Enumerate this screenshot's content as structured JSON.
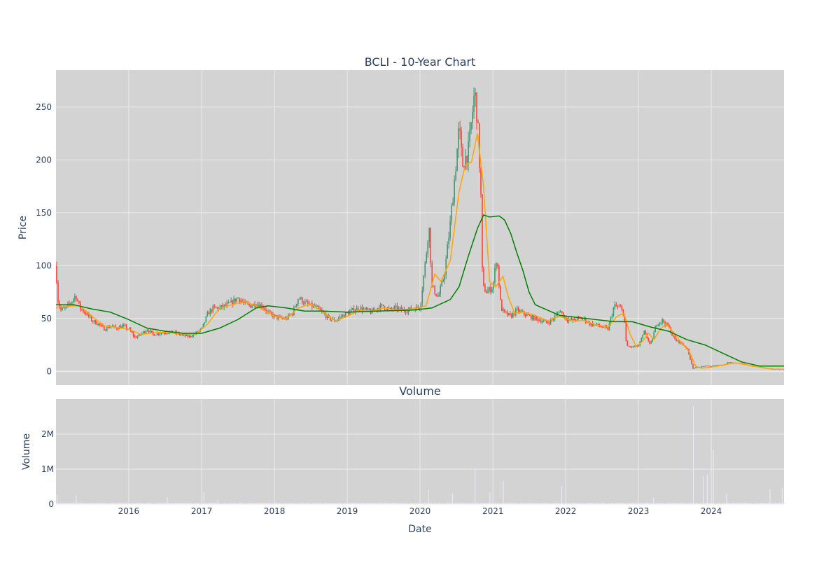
{
  "chart_data": [
    {
      "type": "candlestick",
      "title": "BCLI - 10-Year Chart",
      "xlabel": "",
      "ylabel": "Price",
      "ylim": [
        -13,
        285
      ],
      "yticks": [
        0,
        50,
        100,
        150,
        200,
        250
      ],
      "xlim": [
        "2015-01-01",
        "2024-12-31"
      ],
      "grid": true,
      "colors": {
        "up": "#3d9970",
        "down": "#ff4136",
        "ma_short": "#ffa500",
        "ma_long": "#008000",
        "plot_bg": "#d3d3d3"
      },
      "price_path": [
        [
          "2015-01-01",
          100
        ],
        [
          "2015-01-10",
          68
        ],
        [
          "2015-01-25",
          58
        ],
        [
          "2015-02-20",
          60
        ],
        [
          "2015-03-20",
          66
        ],
        [
          "2015-04-10",
          72
        ],
        [
          "2015-05-01",
          60
        ],
        [
          "2015-06-01",
          55
        ],
        [
          "2015-07-01",
          48
        ],
        [
          "2015-08-01",
          45
        ],
        [
          "2015-09-01",
          40
        ],
        [
          "2015-10-01",
          43
        ],
        [
          "2015-11-01",
          41
        ],
        [
          "2015-12-01",
          43
        ],
        [
          "2016-01-01",
          40
        ],
        [
          "2016-02-01",
          32
        ],
        [
          "2016-03-01",
          35
        ],
        [
          "2016-04-01",
          40
        ],
        [
          "2016-05-01",
          35
        ],
        [
          "2016-06-01",
          36
        ],
        [
          "2016-07-01",
          37
        ],
        [
          "2016-08-01",
          37
        ],
        [
          "2016-09-01",
          36
        ],
        [
          "2016-10-01",
          34
        ],
        [
          "2016-11-01",
          33
        ],
        [
          "2016-12-01",
          36
        ],
        [
          "2017-01-01",
          40
        ],
        [
          "2017-02-01",
          55
        ],
        [
          "2017-03-01",
          60
        ],
        [
          "2017-04-01",
          60
        ],
        [
          "2017-05-01",
          62
        ],
        [
          "2017-06-01",
          65
        ],
        [
          "2017-07-01",
          70
        ],
        [
          "2017-08-01",
          64
        ],
        [
          "2017-09-01",
          62
        ],
        [
          "2017-10-01",
          64
        ],
        [
          "2017-11-01",
          62
        ],
        [
          "2017-12-01",
          55
        ],
        [
          "2018-01-01",
          52
        ],
        [
          "2018-02-01",
          50
        ],
        [
          "2018-03-01",
          50
        ],
        [
          "2018-04-01",
          55
        ],
        [
          "2018-05-01",
          70
        ],
        [
          "2018-06-01",
          65
        ],
        [
          "2018-07-01",
          62
        ],
        [
          "2018-08-01",
          60
        ],
        [
          "2018-09-01",
          55
        ],
        [
          "2018-10-01",
          50
        ],
        [
          "2018-11-01",
          48
        ],
        [
          "2018-12-01",
          52
        ],
        [
          "2019-01-01",
          55
        ],
        [
          "2019-02-01",
          58
        ],
        [
          "2019-03-01",
          60
        ],
        [
          "2019-04-01",
          58
        ],
        [
          "2019-05-01",
          56
        ],
        [
          "2019-06-01",
          60
        ],
        [
          "2019-07-01",
          62
        ],
        [
          "2019-08-01",
          58
        ],
        [
          "2019-09-01",
          60
        ],
        [
          "2019-10-01",
          58
        ],
        [
          "2019-11-01",
          58
        ],
        [
          "2019-12-01",
          60
        ],
        [
          "2020-01-01",
          60
        ],
        [
          "2020-02-01",
          110
        ],
        [
          "2020-02-15",
          140
        ],
        [
          "2020-03-01",
          80
        ],
        [
          "2020-04-01",
          70
        ],
        [
          "2020-05-01",
          90
        ],
        [
          "2020-06-01",
          140
        ],
        [
          "2020-07-01",
          200
        ],
        [
          "2020-07-15",
          230
        ],
        [
          "2020-08-01",
          195
        ],
        [
          "2020-09-01",
          210
        ],
        [
          "2020-10-01",
          265
        ],
        [
          "2020-10-15",
          240
        ],
        [
          "2020-11-01",
          170
        ],
        [
          "2020-11-10",
          80
        ],
        [
          "2020-12-01",
          75
        ],
        [
          "2021-01-01",
          80
        ],
        [
          "2021-01-20",
          110
        ],
        [
          "2021-02-10",
          60
        ],
        [
          "2021-03-01",
          55
        ],
        [
          "2021-04-01",
          52
        ],
        [
          "2021-05-01",
          58
        ],
        [
          "2021-06-01",
          55
        ],
        [
          "2021-07-01",
          52
        ],
        [
          "2021-08-01",
          50
        ],
        [
          "2021-09-01",
          48
        ],
        [
          "2021-10-01",
          46
        ],
        [
          "2021-11-01",
          50
        ],
        [
          "2021-12-01",
          58
        ],
        [
          "2022-01-01",
          50
        ],
        [
          "2022-02-01",
          48
        ],
        [
          "2022-03-01",
          50
        ],
        [
          "2022-04-01",
          50
        ],
        [
          "2022-05-01",
          45
        ],
        [
          "2022-06-01",
          44
        ],
        [
          "2022-07-01",
          42
        ],
        [
          "2022-08-01",
          40
        ],
        [
          "2022-09-01",
          62
        ],
        [
          "2022-10-01",
          60
        ],
        [
          "2022-10-20",
          55
        ],
        [
          "2022-11-01",
          24
        ],
        [
          "2022-12-01",
          23
        ],
        [
          "2023-01-01",
          24
        ],
        [
          "2023-02-01",
          38
        ],
        [
          "2023-03-01",
          24
        ],
        [
          "2023-04-01",
          45
        ],
        [
          "2023-05-01",
          48
        ],
        [
          "2023-06-01",
          42
        ],
        [
          "2023-07-01",
          30
        ],
        [
          "2023-08-01",
          27
        ],
        [
          "2023-09-01",
          22
        ],
        [
          "2023-10-01",
          3
        ],
        [
          "2023-11-01",
          4
        ],
        [
          "2023-12-01",
          5
        ],
        [
          "2024-01-01",
          5
        ],
        [
          "2024-02-01",
          6
        ],
        [
          "2024-03-01",
          6
        ],
        [
          "2024-04-01",
          9
        ],
        [
          "2024-05-01",
          8
        ],
        [
          "2024-06-01",
          7
        ],
        [
          "2024-07-01",
          6
        ],
        [
          "2024-08-01",
          5
        ],
        [
          "2024-09-01",
          4
        ],
        [
          "2024-10-01",
          3
        ],
        [
          "2024-11-01",
          2
        ],
        [
          "2024-12-31",
          2
        ]
      ],
      "series": [
        {
          "type": "line",
          "values": [
            [
              "2015-01-01",
              60
            ],
            [
              "2015-03-01",
              62
            ],
            [
              "2015-05-01",
              62
            ],
            [
              "2015-07-01",
              52
            ],
            [
              "2015-09-01",
              43
            ],
            [
              "2016-01-01",
              40
            ],
            [
              "2016-03-01",
              35
            ],
            [
              "2016-06-01",
              37
            ],
            [
              "2016-09-01",
              36
            ],
            [
              "2016-12-01",
              35
            ],
            [
              "2017-02-01",
              45
            ],
            [
              "2017-04-01",
              60
            ],
            [
              "2017-06-01",
              63
            ],
            [
              "2017-08-01",
              66
            ],
            [
              "2017-10-01",
              62
            ],
            [
              "2018-01-01",
              52
            ],
            [
              "2018-03-01",
              50
            ],
            [
              "2018-05-01",
              60
            ],
            [
              "2018-07-01",
              64
            ],
            [
              "2018-09-01",
              56
            ],
            [
              "2018-11-01",
              48
            ],
            [
              "2019-01-01",
              52
            ],
            [
              "2019-03-01",
              58
            ],
            [
              "2019-05-01",
              57
            ],
            [
              "2019-07-01",
              60
            ],
            [
              "2019-09-01",
              58
            ],
            [
              "2019-12-01",
              59
            ],
            [
              "2020-02-01",
              62
            ],
            [
              "2020-03-15",
              92
            ],
            [
              "2020-04-15",
              85
            ],
            [
              "2020-06-01",
              105
            ],
            [
              "2020-07-15",
              170
            ],
            [
              "2020-08-15",
              195
            ],
            [
              "2020-09-15",
              198
            ],
            [
              "2020-10-15",
              225
            ],
            [
              "2020-11-15",
              175
            ],
            [
              "2020-12-15",
              85
            ],
            [
              "2021-01-15",
              80
            ],
            [
              "2021-02-20",
              90
            ],
            [
              "2021-03-20",
              70
            ],
            [
              "2021-04-20",
              55
            ],
            [
              "2021-06-01",
              56
            ],
            [
              "2021-08-01",
              53
            ],
            [
              "2021-10-01",
              48
            ],
            [
              "2021-12-01",
              52
            ],
            [
              "2022-02-01",
              48
            ],
            [
              "2022-04-01",
              48
            ],
            [
              "2022-06-01",
              44
            ],
            [
              "2022-08-01",
              42
            ],
            [
              "2022-09-15",
              52
            ],
            [
              "2022-10-20",
              55
            ],
            [
              "2022-11-20",
              35
            ],
            [
              "2022-12-20",
              24
            ],
            [
              "2023-01-20",
              28
            ],
            [
              "2023-02-20",
              36
            ],
            [
              "2023-03-20",
              30
            ],
            [
              "2023-04-20",
              40
            ],
            [
              "2023-05-20",
              45
            ],
            [
              "2023-06-20",
              38
            ],
            [
              "2023-08-01",
              28
            ],
            [
              "2023-09-15",
              18
            ],
            [
              "2023-10-15",
              5
            ],
            [
              "2023-11-15",
              3
            ],
            [
              "2024-01-01",
              4
            ],
            [
              "2024-03-01",
              6
            ],
            [
              "2024-05-01",
              8
            ],
            [
              "2024-07-01",
              6
            ],
            [
              "2024-09-01",
              4
            ],
            [
              "2024-11-01",
              2
            ],
            [
              "2024-12-31",
              2
            ]
          ]
        },
        {
          "type": "line",
          "values": [
            [
              "2015-01-01",
              63
            ],
            [
              "2015-04-01",
              63
            ],
            [
              "2015-07-01",
              59
            ],
            [
              "2015-10-01",
              56
            ],
            [
              "2016-01-01",
              49
            ],
            [
              "2016-04-01",
              41
            ],
            [
              "2016-07-01",
              38
            ],
            [
              "2016-10-01",
              36
            ],
            [
              "2017-01-01",
              36
            ],
            [
              "2017-04-01",
              41
            ],
            [
              "2017-07-01",
              49
            ],
            [
              "2017-10-01",
              60
            ],
            [
              "2017-12-01",
              62
            ],
            [
              "2018-03-01",
              60
            ],
            [
              "2018-06-01",
              57
            ],
            [
              "2018-09-01",
              57
            ],
            [
              "2019-01-01",
              56
            ],
            [
              "2019-06-01",
              57
            ],
            [
              "2019-12-01",
              58
            ],
            [
              "2020-03-01",
              60
            ],
            [
              "2020-06-01",
              68
            ],
            [
              "2020-07-15",
              80
            ],
            [
              "2020-09-01",
              110
            ],
            [
              "2020-10-15",
              135
            ],
            [
              "2020-11-15",
              148
            ],
            [
              "2020-12-15",
              146
            ],
            [
              "2021-02-01",
              147
            ],
            [
              "2021-03-01",
              143
            ],
            [
              "2021-04-01",
              130
            ],
            [
              "2021-05-01",
              112
            ],
            [
              "2021-06-01",
              95
            ],
            [
              "2021-07-01",
              75
            ],
            [
              "2021-08-01",
              63
            ],
            [
              "2021-10-01",
              58
            ],
            [
              "2021-12-01",
              53
            ],
            [
              "2022-03-01",
              51
            ],
            [
              "2022-06-01",
              49
            ],
            [
              "2022-09-01",
              47
            ],
            [
              "2022-12-01",
              47
            ],
            [
              "2023-03-01",
              42
            ],
            [
              "2023-06-01",
              38
            ],
            [
              "2023-09-01",
              30
            ],
            [
              "2023-12-01",
              25
            ],
            [
              "2024-03-01",
              17
            ],
            [
              "2024-06-01",
              9
            ],
            [
              "2024-09-01",
              5
            ],
            [
              "2024-12-31",
              5
            ]
          ]
        }
      ]
    },
    {
      "type": "bar",
      "title": "Volume",
      "xlabel": "Date",
      "ylabel": "Volume",
      "ylim": [
        0,
        3000000
      ],
      "yticks": [
        0,
        1000000,
        2000000
      ],
      "ytick_labels": [
        "0",
        "1M",
        "2M"
      ],
      "xtick_labels": [
        "2016",
        "2017",
        "2018",
        "2019",
        "2020",
        "2021",
        "2022",
        "2023",
        "2024"
      ],
      "xtick_dates": [
        "2016-01-01",
        "2017-01-01",
        "2018-01-01",
        "2019-01-01",
        "2020-01-01",
        "2021-01-01",
        "2022-01-01",
        "2023-01-01",
        "2024-01-01"
      ],
      "color": "#e8e8f6",
      "spikes": [
        [
          "2015-01-05",
          280000
        ],
        [
          "2015-04-10",
          250000
        ],
        [
          "2016-07-10",
          200000
        ],
        [
          "2017-01-10",
          350000
        ],
        [
          "2017-03-20",
          120000
        ],
        [
          "2020-02-10",
          420000
        ],
        [
          "2020-06-10",
          300000
        ],
        [
          "2020-10-01",
          1050000
        ],
        [
          "2020-12-15",
          330000
        ],
        [
          "2021-02-20",
          650000
        ],
        [
          "2021-12-10",
          520000
        ],
        [
          "2023-03-15",
          180000
        ],
        [
          "2023-10-01",
          2800000
        ],
        [
          "2023-11-20",
          800000
        ],
        [
          "2023-12-10",
          850000
        ],
        [
          "2024-01-10",
          1550000
        ],
        [
          "2024-03-15",
          300000
        ],
        [
          "2024-10-20",
          420000
        ],
        [
          "2024-12-20",
          470000
        ]
      ]
    }
  ]
}
